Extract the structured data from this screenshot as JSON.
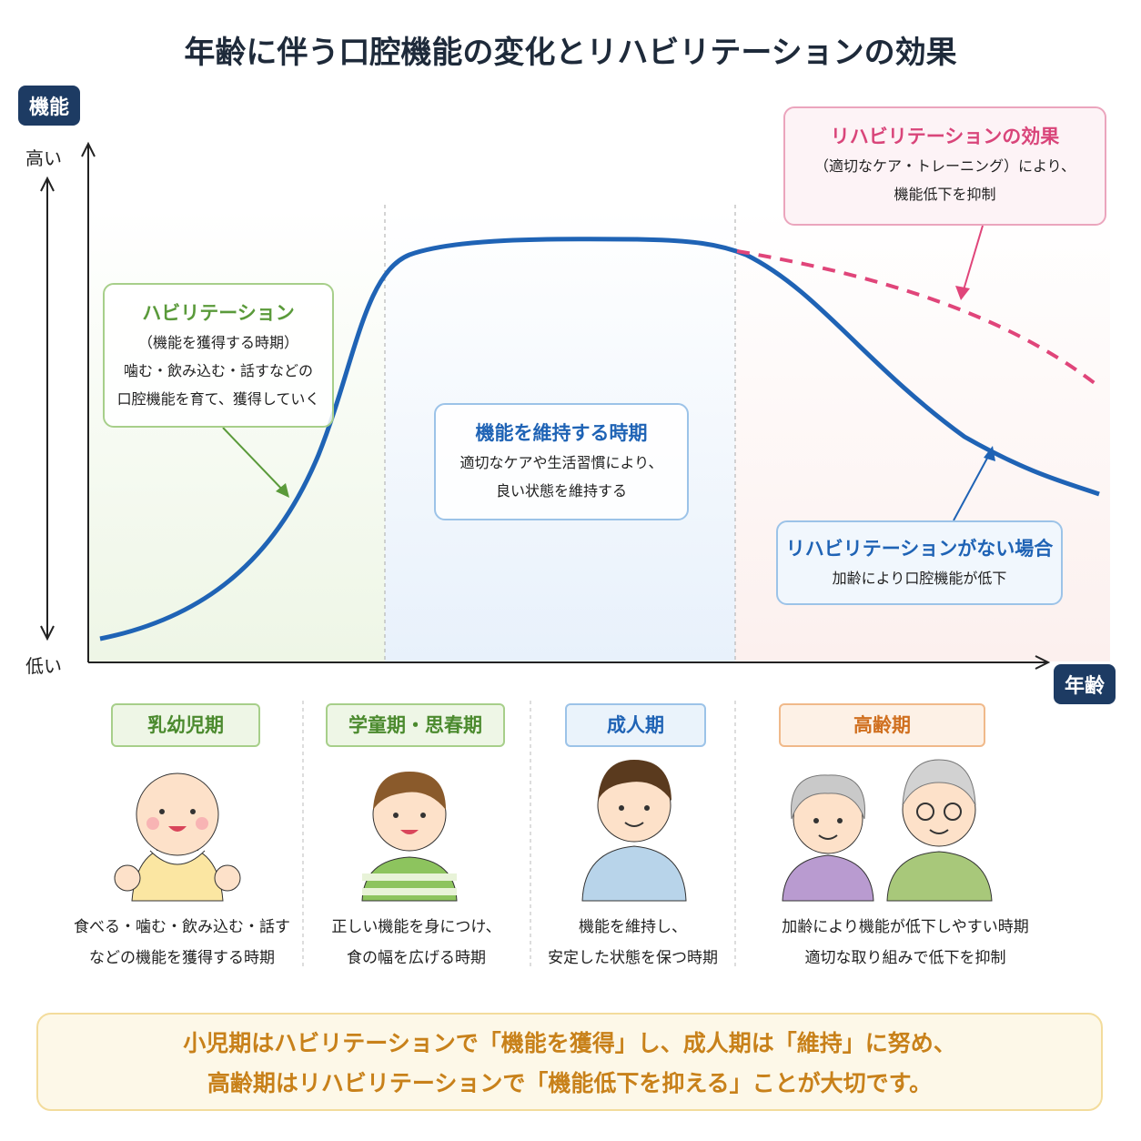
{
  "title": "年齢に伴う口腔機能の変化とリハビリテーションの効果",
  "axis": {
    "y_label": "機能",
    "y_high": "高い",
    "y_low": "低い",
    "x_label": "年齢"
  },
  "callouts": {
    "habilitation": {
      "heading": "ハビリテーション",
      "lines": [
        "（機能を獲得する時期）",
        "噛む・飲み込む・話すなどの",
        "口腔機能を育て、獲得していく"
      ]
    },
    "maintain": {
      "heading": "機能を維持する時期",
      "lines": [
        "適切なケアや生活習慣により、",
        "良い状態を維持する"
      ]
    },
    "rehab_effect": {
      "heading": "リハビリテーションの効果",
      "lines": [
        "（適切なケア・トレーニング）により、",
        "機能低下を抑制"
      ]
    },
    "no_rehab": {
      "heading": "リハビリテーションがない場合",
      "lines": [
        "加齢により口腔機能が低下"
      ]
    }
  },
  "stages": [
    {
      "label": "乳幼児期",
      "desc": [
        "食べる・噛む・飲み込む・話す",
        "などの機能を獲得する時期"
      ]
    },
    {
      "label": "学童期・思春期",
      "desc": [
        "正しい機能を身につけ、",
        "食の幅を広げる時期"
      ]
    },
    {
      "label": "成人期",
      "desc": [
        "機能を維持し、",
        "安定した状態を保つ時期"
      ]
    },
    {
      "label": "高齢期",
      "desc": [
        "加齢により機能が低下しやすい時期",
        "適切な取り組みで低下を抑制"
      ]
    }
  ],
  "footer": [
    "小児期はハビリテーションで「機能を獲得」し、成人期は「維持」に努め、",
    "高齢期はリハビリテーションで「機能低下を抑える」ことが大切です。"
  ],
  "colors": {
    "curve": "#1f63b5",
    "dashed": "#e0457a",
    "green": "#5a9a3a",
    "blue": "#1f63b5",
    "pink": "#d9457a",
    "orange": "#c8811a"
  }
}
